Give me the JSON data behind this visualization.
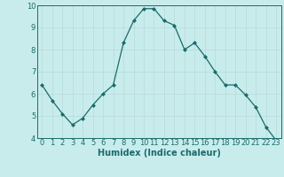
{
  "x": [
    0,
    1,
    2,
    3,
    4,
    5,
    6,
    7,
    8,
    9,
    10,
    11,
    12,
    13,
    14,
    15,
    16,
    17,
    18,
    19,
    20,
    21,
    22,
    23
  ],
  "y": [
    6.4,
    5.7,
    5.1,
    4.6,
    4.9,
    5.5,
    6.0,
    6.4,
    8.3,
    9.3,
    9.85,
    9.85,
    9.3,
    9.1,
    8.0,
    8.3,
    7.7,
    7.0,
    6.4,
    6.4,
    5.95,
    5.4,
    4.5,
    3.9
  ],
  "line_color": "#1a6b6b",
  "marker": "D",
  "marker_size": 2,
  "bg_color": "#c8ecec",
  "grid_color": "#b8d8d8",
  "xlabel": "Humidex (Indice chaleur)",
  "ylim": [
    4,
    10
  ],
  "xlim_min": -0.5,
  "xlim_max": 23.5,
  "yticks": [
    4,
    5,
    6,
    7,
    8,
    9,
    10
  ],
  "xticks": [
    0,
    1,
    2,
    3,
    4,
    5,
    6,
    7,
    8,
    9,
    10,
    11,
    12,
    13,
    14,
    15,
    16,
    17,
    18,
    19,
    20,
    21,
    22,
    23
  ],
  "tick_color": "#1a6b6b",
  "label_fontsize": 7,
  "tick_fontsize": 6
}
